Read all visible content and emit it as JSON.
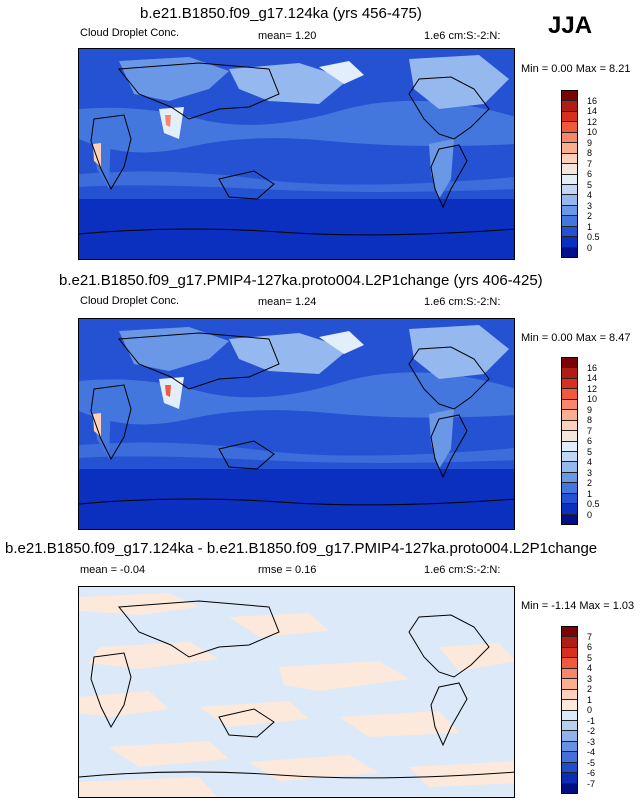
{
  "season": "JJA",
  "panels": [
    {
      "title": "b.e21.B1850.f09_g17.124ka (yrs 456-475)",
      "left_label": "Cloud Droplet Conc.",
      "center_label": "mean=   1.20",
      "right_label": "1.e6 cm:S:-2:N:",
      "minmax": "Min =   0.00 Max =   8.21",
      "colorbar_labels": [
        "16",
        "14",
        "12",
        "10",
        "9",
        "8",
        "7",
        "6",
        "5",
        "4",
        "3",
        "2",
        "1",
        "0.5",
        "0"
      ],
      "colorbar_colors": [
        "#7a0403",
        "#b01d14",
        "#d7301f",
        "#ef5a3c",
        "#f7866a",
        "#fbad90",
        "#fdd0bc",
        "#f3e6dd",
        "#e3eefb",
        "#c1d6f5",
        "#95b8ef",
        "#6a98e6",
        "#4477dd",
        "#2452d3",
        "#0b2fbe",
        "#020f8a"
      ]
    },
    {
      "title": "b.e21.B1850.f09_g17.PMIP4-127ka.proto004.L2P1change (yrs 406-425)",
      "left_label": "Cloud Droplet Conc.",
      "center_label": "mean=   1.24",
      "right_label": "1.e6 cm:S:-2:N:",
      "minmax": "Min =   0.00 Max =   8.47",
      "colorbar_labels": [
        "16",
        "14",
        "12",
        "10",
        "9",
        "8",
        "7",
        "6",
        "5",
        "4",
        "3",
        "2",
        "1",
        "0.5",
        "0"
      ],
      "colorbar_colors": [
        "#7a0403",
        "#b01d14",
        "#d7301f",
        "#ef5a3c",
        "#f7866a",
        "#fbad90",
        "#fdd0bc",
        "#f3e6dd",
        "#e3eefb",
        "#c1d6f5",
        "#95b8ef",
        "#6a98e6",
        "#4477dd",
        "#2452d3",
        "#0b2fbe",
        "#020f8a"
      ]
    },
    {
      "title": "b.e21.B1850.f09_g17.124ka - b.e21.B1850.f09_g17.PMIP4-127ka.proto004.L2P1change",
      "left_label": "mean =  -0.04",
      "center_label": "rmse =   0.16",
      "right_label": "1.e6 cm:S:-2:N:",
      "minmax": "Min =  -1.14 Max =   1.03",
      "colorbar_labels": [
        "7",
        "6",
        "5",
        "4",
        "3",
        "2",
        "1",
        "0",
        "-1",
        "-2",
        "-3",
        "-4",
        "-5",
        "-6",
        "-7"
      ],
      "colorbar_colors": [
        "#7a0403",
        "#b01d14",
        "#d7301f",
        "#ef5a3c",
        "#f7866a",
        "#fbad90",
        "#fdd0bc",
        "#fde9dc",
        "#dce9f8",
        "#b6cff3",
        "#8fb1ec",
        "#6991e3",
        "#4470da",
        "#1f4dcc",
        "#0a2db3",
        "#020f80"
      ]
    }
  ],
  "colors": {
    "ocean_deep": "#2452d3",
    "ocean_low": "#0b2fbe",
    "band_mid": "#4477dd",
    "band_light": "#95b8ef",
    "land_high": "#e3eefb",
    "diff_neutral": "#dce9f8",
    "diff_positive": "#fde9dc"
  }
}
